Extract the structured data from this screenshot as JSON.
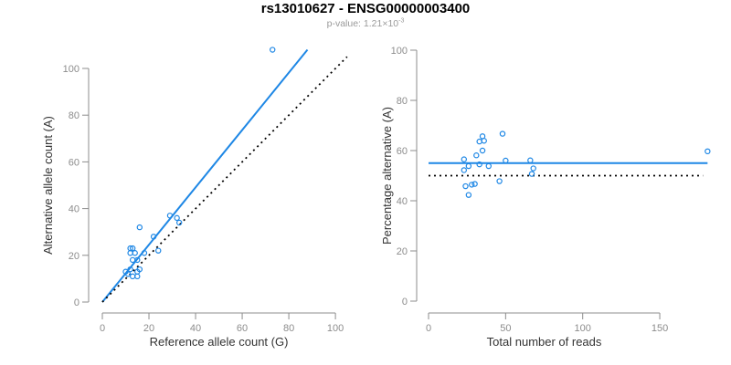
{
  "header": {
    "title": "rs13010627 - ENSG00000003400",
    "subtitle_text": "p-value: 1.21×10",
    "subtitle_superscript": "-3"
  },
  "colors": {
    "accent_blue": "#1E87E5",
    "dotted_black": "#000000",
    "axis_line": "#8c8c8c",
    "tick_label": "#8c8c8c",
    "axis_title": "#333333",
    "title_color": "#000000",
    "subtitle_color": "#9a9a9a"
  },
  "chart_data": [
    {
      "type": "scatter",
      "panel": "left",
      "xlabel": "Reference allele count (G)",
      "ylabel": "Alternative allele count (A)",
      "xlim": [
        0,
        105
      ],
      "ylim": [
        0,
        110
      ],
      "xticks": [
        0,
        20,
        40,
        60,
        80,
        100
      ],
      "yticks": [
        0,
        20,
        40,
        60,
        80,
        100
      ],
      "grid": false,
      "legend": "none",
      "points": [
        [
          16,
          32
        ],
        [
          29,
          37
        ],
        [
          32,
          36
        ],
        [
          33,
          34
        ],
        [
          22,
          28
        ],
        [
          12,
          23
        ],
        [
          13,
          23
        ],
        [
          12,
          21
        ],
        [
          14,
          21
        ],
        [
          13,
          18
        ],
        [
          15,
          18
        ],
        [
          18,
          21
        ],
        [
          24,
          22
        ],
        [
          10,
          13
        ],
        [
          12,
          14
        ],
        [
          11,
          12
        ],
        [
          13,
          11
        ],
        [
          15,
          13
        ],
        [
          16,
          14
        ],
        [
          15,
          11
        ],
        [
          73,
          108
        ]
      ],
      "lines": [
        {
          "name": "fit-line",
          "style": "solid",
          "color": "#1E87E5",
          "from": [
            0,
            0
          ],
          "to": [
            88,
            108
          ]
        },
        {
          "name": "identity-line",
          "style": "dotted",
          "color": "#000000",
          "from": [
            0,
            0
          ],
          "to": [
            105,
            105
          ]
        }
      ]
    },
    {
      "type": "scatter",
      "panel": "right",
      "xlabel": "Total number of reads",
      "ylabel": "Percentage alternative (A)",
      "xlim": [
        0,
        190
      ],
      "ylim": [
        0,
        100
      ],
      "xticks": [
        0,
        50,
        100,
        150
      ],
      "yticks": [
        0,
        20,
        40,
        60,
        80,
        100
      ],
      "grid": false,
      "legend": "none",
      "points": [
        [
          48,
          66.7
        ],
        [
          66,
          56.1
        ],
        [
          68,
          52.9
        ],
        [
          67,
          50.7
        ],
        [
          50,
          56.0
        ],
        [
          35,
          65.7
        ],
        [
          36,
          63.9
        ],
        [
          33,
          63.6
        ],
        [
          35,
          60.0
        ],
        [
          31,
          58.1
        ],
        [
          33,
          54.5
        ],
        [
          39,
          53.8
        ],
        [
          46,
          47.8
        ],
        [
          23,
          56.5
        ],
        [
          26,
          53.8
        ],
        [
          23,
          52.2
        ],
        [
          24,
          45.8
        ],
        [
          28,
          46.4
        ],
        [
          30,
          46.7
        ],
        [
          26,
          42.3
        ],
        [
          181,
          59.7
        ]
      ],
      "lines": [
        {
          "name": "mean-line",
          "style": "solid",
          "color": "#1E87E5",
          "from": [
            0,
            55
          ],
          "to": [
            181,
            55
          ]
        },
        {
          "name": "null-line",
          "style": "dotted",
          "color": "#000000",
          "from": [
            0,
            50
          ],
          "to": [
            178,
            50
          ]
        }
      ]
    }
  ]
}
